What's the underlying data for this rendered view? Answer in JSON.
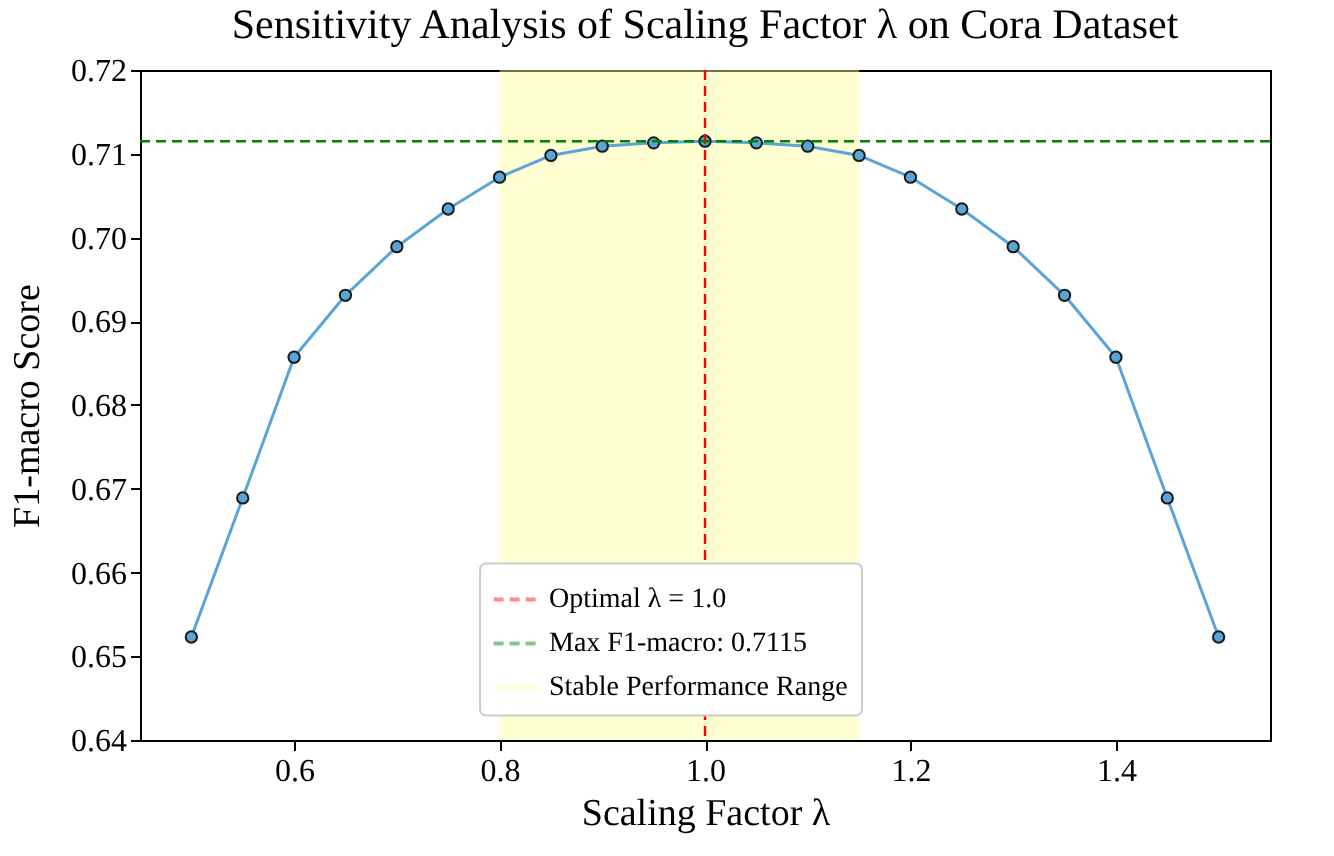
{
  "chart_data": {
    "type": "line",
    "title": "Sensitivity Analysis of Scaling Factor λ on Cora Dataset",
    "xlabel": "Scaling Factor λ",
    "ylabel": "F1-macro Score",
    "x": [
      0.5,
      0.55,
      0.6,
      0.65,
      0.7,
      0.75,
      0.8,
      0.85,
      0.9,
      0.95,
      1.0,
      1.05,
      1.1,
      1.15,
      1.2,
      1.25,
      1.3,
      1.35,
      1.4,
      1.45,
      1.5
    ],
    "series": [
      {
        "color": "#5aa5d8",
        "values": [
          0.6523,
          0.6689,
          0.6857,
          0.6931,
          0.6989,
          0.7034,
          0.7072,
          0.7098,
          0.7109,
          0.7113,
          0.7115,
          0.7113,
          0.7109,
          0.7098,
          0.7072,
          0.7034,
          0.6989,
          0.6931,
          0.6857,
          0.6689,
          0.6523
        ]
      }
    ],
    "bands": [
      {
        "axis": "x",
        "from": 0.8,
        "to": 1.15,
        "label": "Stable Performance Range",
        "color": "#ffff99"
      }
    ],
    "xlim": [
      0.45,
      1.55
    ],
    "xticks": [
      0.6,
      0.8,
      {
        "value": 1.0,
        "label": "1.0"
      },
      1.2,
      1.4
    ],
    "ylim": [
      0.64,
      0.72
    ],
    "yticks": [
      0.64,
      0.65,
      0.66,
      0.67,
      0.68,
      0.69,
      {
        "value": 0.7,
        "label": "0.70"
      },
      0.71,
      0.72
    ],
    "ref_lines": [
      {
        "axis": "x",
        "value": 1.0,
        "label": "Optimal λ = 1.0",
        "color": "#ff0000",
        "line_style": "dashed"
      },
      {
        "axis": "y",
        "value": 0.7115,
        "label": "Max F1-macro: 0.7115",
        "color": "#008000",
        "line_style": "dashed"
      }
    ],
    "marker": "circle",
    "line_style": "solid",
    "grid": false,
    "legend": "bottom"
  }
}
